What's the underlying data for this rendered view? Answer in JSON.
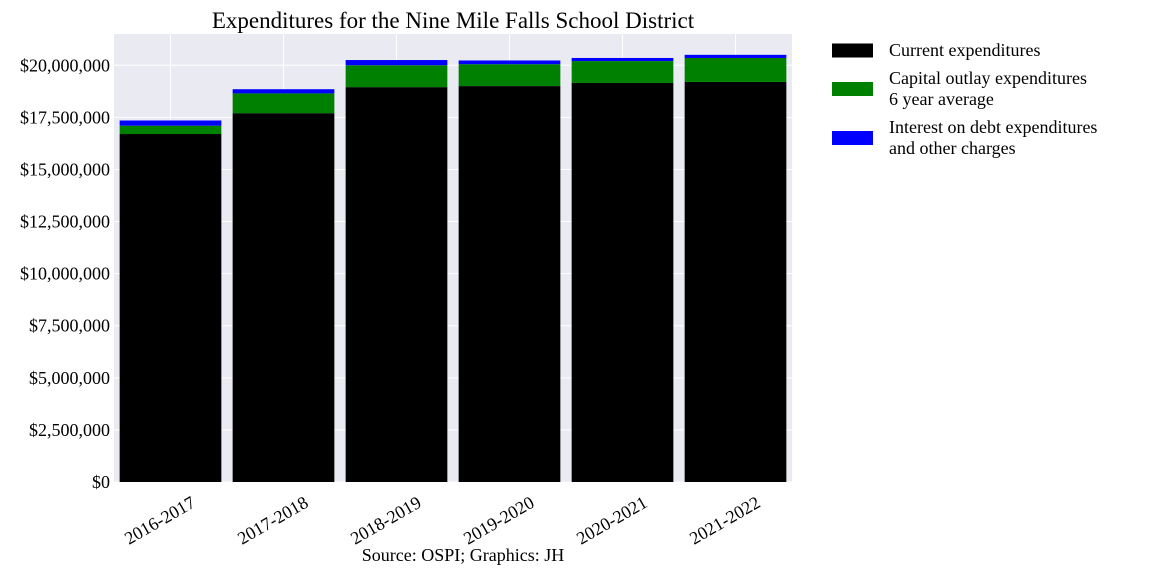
{
  "chart_data": {
    "type": "bar",
    "stacked": true,
    "title": "Expenditures for the Nine Mile Falls School District",
    "categories": [
      "2016-2017",
      "2017-2018",
      "2018-2019",
      "2019-2020",
      "2020-2021",
      "2021-2022"
    ],
    "series": [
      {
        "name": "Current expenditures",
        "color": "#000000",
        "values": [
          16700000,
          17700000,
          18950000,
          19000000,
          19150000,
          19200000
        ]
      },
      {
        "name": "Capital outlay expenditures\n6 year average",
        "color": "#008000",
        "values": [
          400000,
          950000,
          1050000,
          1050000,
          1050000,
          1150000
        ]
      },
      {
        "name": "Interest on debt expenditures\nand other charges",
        "color": "#0000ff",
        "values": [
          250000,
          200000,
          250000,
          180000,
          150000,
          150000
        ]
      }
    ],
    "ylim": [
      0,
      21500000
    ],
    "yticks": [
      0,
      2500000,
      5000000,
      7500000,
      10000000,
      12500000,
      15000000,
      17500000,
      20000000
    ],
    "ytick_labels": [
      "$0",
      "$2,500,000",
      "$5,000,000",
      "$7,500,000",
      "$10,000,000",
      "$12,500,000",
      "$15,000,000",
      "$17,500,000",
      "$20,000,000"
    ],
    "grid": true,
    "legend_position": "outside-right",
    "background": "#eaeaf2",
    "source": "Source: OSPI; Graphics: JH"
  }
}
